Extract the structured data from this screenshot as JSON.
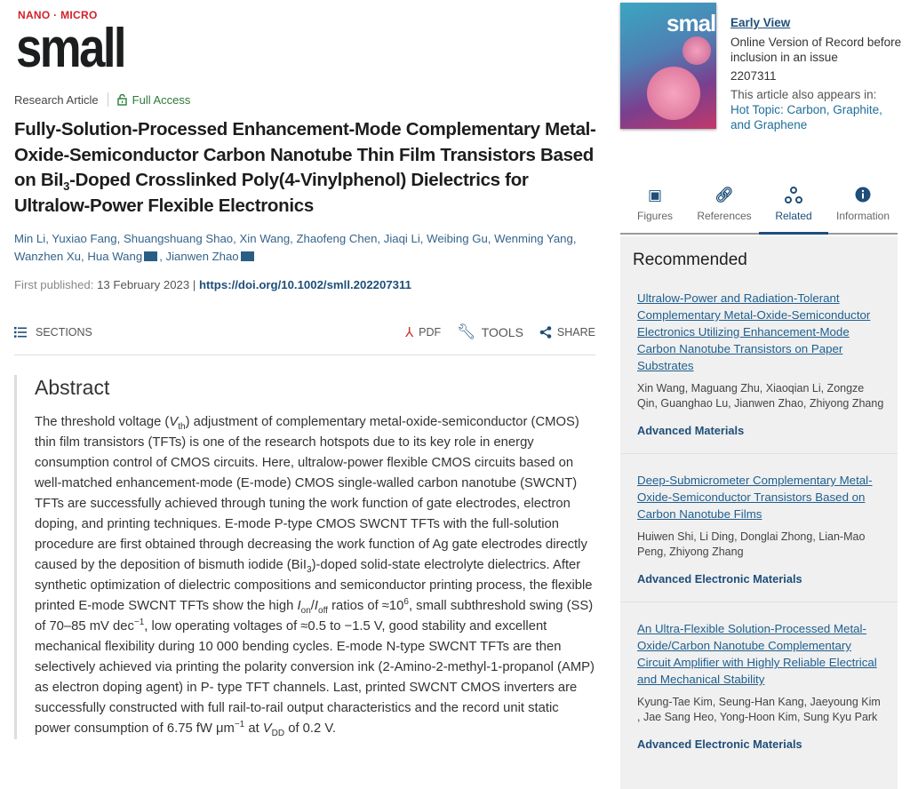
{
  "journal": {
    "logo_top": "NANO · MICRO",
    "logo_main": "small"
  },
  "article": {
    "type": "Research Article",
    "access": "Full Access",
    "title_parts": [
      "Fully-Solution-Processed Enhancement-Mode Complementary Metal-Oxide-Semiconductor Carbon Nanotube Thin Film Transistors Based on BiI",
      "3",
      "-Doped Crosslinked Poly(4-Vinylphenol) Dielectrics for Ultralow-Power Flexible Electronics"
    ],
    "authors": [
      "Min Li",
      "Yuxiao Fang",
      "Shuangshuang Shao",
      "Xin Wang",
      "Zhaofeng Chen",
      "Jiaqi Li",
      "Weibing Gu",
      "Wenming Yang",
      "Wanzhen Xu",
      "Hua Wang",
      "Jianwen Zhao"
    ],
    "first_published_label": "First published:",
    "first_published": "13 February 2023",
    "doi": "https://doi.org/10.1002/smll.202207311"
  },
  "toolbar": {
    "sections": "SECTIONS",
    "pdf": "PDF",
    "tools": "TOOLS",
    "share": "SHARE"
  },
  "abstract": {
    "heading": "Abstract",
    "segments": [
      [
        "",
        "The threshold voltage ("
      ],
      [
        "i",
        "V"
      ],
      [
        "sub",
        "th"
      ],
      [
        "",
        ") adjustment of complementary metal-oxide-semiconductor (CMOS) thin film transistors (TFTs) is one of the research hotspots due to its key role in energy consumption control of CMOS circuits. Here, ultralow-power flexible CMOS circuits based on well-matched enhancement-mode (E-mode) CMOS single-walled carbon nanotube (SWCNT) TFTs are successfully achieved through tuning the work function of gate electrodes, electron doping, and printing techniques. E-mode P-type CMOS SWCNT TFTs with the full-solution procedure are first obtained through decreasing the work function of Ag gate electrodes directly caused by the deposition of bismuth iodide (BiI"
      ],
      [
        "sub",
        "3"
      ],
      [
        "",
        ")-doped solid-state electrolyte dielectrics. After synthetic optimization of dielectric compositions and semiconductor printing process, the flexible printed E-mode SWCNT TFTs show the high "
      ],
      [
        "i",
        "I"
      ],
      [
        "sub",
        "on"
      ],
      [
        "",
        "/"
      ],
      [
        "i",
        "I"
      ],
      [
        "sub",
        "off"
      ],
      [
        "",
        " ratios of ≈10"
      ],
      [
        "sup",
        "6"
      ],
      [
        "",
        ", small subthreshold swing (SS) of 70–85 mV dec"
      ],
      [
        "sup",
        "−1"
      ],
      [
        "",
        ", low operating voltages of ≈0.5 to −1.5 V, good stability and excellent mechanical flexibility during 10 000 bending cycles. E-mode N-type SWCNT TFTs are then selectively achieved via printing the polarity conversion ink (2-Amino-2-methyl-1-propanol (AMP) as electron  doping agent) in P- type TFT channels. Last, printed SWCNT CMOS inverters are successfully constructed with full rail-to-rail output characteristics and the record unit static power consumption of 6.75 fW μm"
      ],
      [
        "sup",
        "−1"
      ],
      [
        "",
        " at "
      ],
      [
        "i",
        "V"
      ],
      [
        "sub",
        "DD"
      ],
      [
        "",
        " of 0.2 V."
      ]
    ]
  },
  "issue": {
    "early_view": "Early View",
    "status": "Online Version of Record before inclusion in an issue",
    "number": "2207311",
    "also_label": "This article also appears in:",
    "also_link": "Hot Topic: Carbon, Graphite, and Graphene"
  },
  "tabs": [
    {
      "label": "Figures",
      "icon": "image-icon"
    },
    {
      "label": "References",
      "icon": "link-icon"
    },
    {
      "label": "Related",
      "icon": "related-icon",
      "active": true
    },
    {
      "label": "Information",
      "icon": "info-icon"
    }
  ],
  "recommended": {
    "heading": "Recommended",
    "items": [
      {
        "title": "Ultralow-Power and Radiation-Tolerant Complementary Metal-Oxide-Semiconductor Electronics Utilizing Enhancement-Mode Carbon Nanotube Transistors on Paper Substrates",
        "authors": "Xin Wang, Maguang Zhu, Xiaoqian Li, Zongze Qin, Guanghao Lu, Jianwen Zhao, Zhiyong Zhang",
        "journal": "Advanced Materials"
      },
      {
        "title": "Deep-Submicrometer Complementary Metal-Oxide-Semiconductor Transistors Based on Carbon Nanotube Films",
        "authors": "Huiwen Shi, Li Ding, Donglai Zhong, Lian-Mao Peng, Zhiyong Zhang",
        "journal": "Advanced Electronic Materials"
      },
      {
        "title": "An Ultra-Flexible Solution-Processed Metal-Oxide/Carbon Nanotube Complementary Circuit Amplifier with Highly Reliable Electrical and Mechanical Stability",
        "authors": "Kyung-Tae Kim, Seung-Han Kang, Jaeyoung Kim , Jae Sang Heo, Yong-Hoon Kim, Sung Kyu Park",
        "journal": "Advanced Electronic Materials"
      }
    ]
  },
  "colors": {
    "link": "#1e4e79",
    "access": "#2b7a3b",
    "logo_red": "#d4202a",
    "sidebar_bg": "#f0f0f0"
  }
}
